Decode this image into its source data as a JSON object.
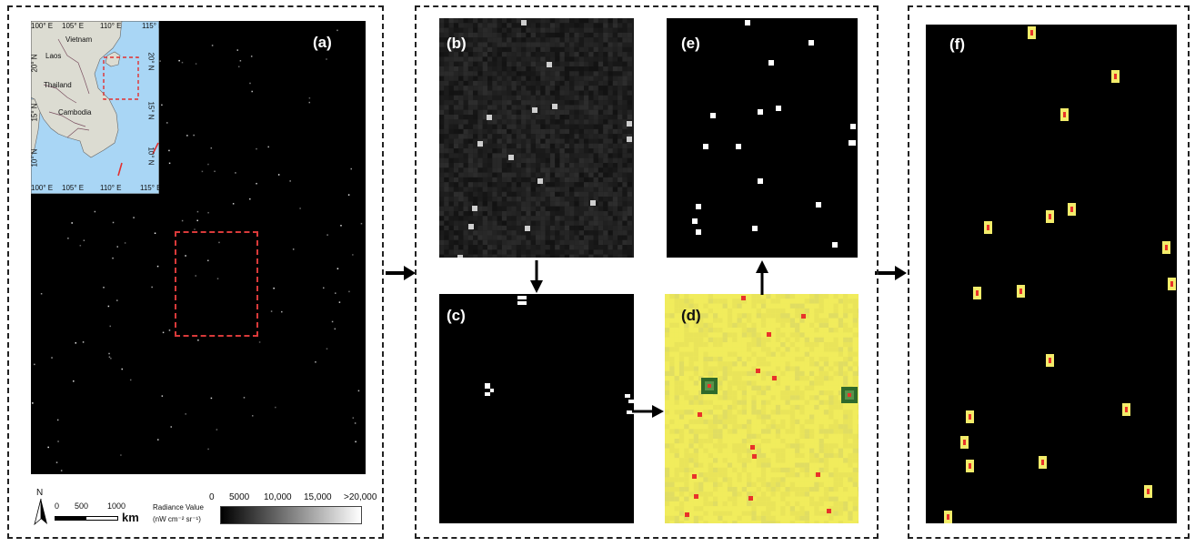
{
  "panels": {
    "a": {
      "label": "(a)"
    },
    "b": {
      "label": "(b)"
    },
    "c": {
      "label": "(c)"
    },
    "d": {
      "label": "(d)"
    },
    "e": {
      "label": "(e)"
    },
    "f": {
      "label": "(f)"
    }
  },
  "inset_map": {
    "countries": [
      "Vietnam",
      "Laos",
      "Thailand",
      "Cambodia"
    ],
    "top_ticks": [
      "100° E",
      "105° E",
      "110° E",
      "115° E"
    ],
    "bottom_ticks": [
      "100° E",
      "105° E",
      "110° E",
      "115° E"
    ],
    "left_ticks": [
      "20° N",
      "15° N",
      "10° N"
    ],
    "right_ticks": [
      "20° N",
      "15° N",
      "10° N"
    ],
    "colors": {
      "land": "#dcdcd2",
      "sea": "#a9d6f5",
      "roi": "#e23030"
    }
  },
  "legend": {
    "north": "N",
    "scale_ticks": [
      "0",
      "500",
      "1000"
    ],
    "scale_unit": "km",
    "radiance_title": "Radiance Value",
    "radiance_unit": "(nW cm⁻² sr⁻¹)",
    "radiance_ticks": [
      "0",
      "5000",
      "10,000",
      "15,000",
      ">20,000"
    ]
  },
  "colors": {
    "background": "#000000",
    "detection_yellow": "#f1ec5c",
    "detection_red": "#e8322a",
    "roi_box": "#d93a3a"
  }
}
